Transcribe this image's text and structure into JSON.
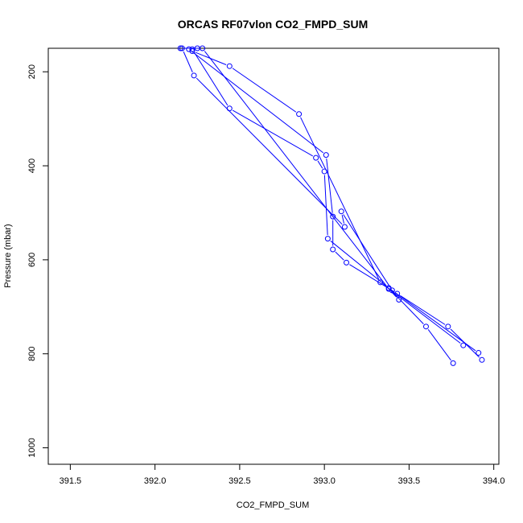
{
  "chart_data": {
    "type": "line",
    "title": "ORCAS RF07vlon CO2_FMPD_SUM",
    "xlabel": "CO2_FMPD_SUM",
    "ylabel": "Pressure (mbar)",
    "xlim": [
      391.37,
      394.03
    ],
    "ylim": [
      1035,
      150
    ],
    "y_inverted": true,
    "xticks": [
      391.5,
      392.0,
      392.5,
      393.0,
      393.5,
      394.0
    ],
    "xtick_labels": [
      "391.5",
      "392.0",
      "392.5",
      "393.0",
      "393.5",
      "394.0"
    ],
    "yticks": [
      200,
      400,
      600,
      800,
      1000
    ],
    "ytick_labels": [
      "200",
      "400",
      "600",
      "800",
      "1000"
    ],
    "grid": false,
    "legend": "none",
    "color": "#0000ff",
    "series": [
      {
        "x": [
          393.76,
          393.6,
          393.38,
          393.02,
          393.0,
          392.95,
          392.44,
          392.22
        ],
        "y": [
          820,
          742,
          660,
          555,
          412,
          383,
          278,
          152
        ]
      },
      {
        "x": [
          392.16,
          392.23,
          393.12,
          393.1,
          393.4,
          393.91
        ],
        "y": [
          150,
          208,
          530,
          497,
          665,
          798
        ]
      },
      {
        "x": [
          393.93,
          393.73,
          393.43,
          393.13,
          393.05,
          393.05,
          393.01,
          392.2,
          392.25
        ],
        "y": [
          813,
          742,
          672,
          606,
          578,
          508,
          377,
          152,
          150
        ]
      },
      {
        "x": [
          392.22,
          392.44,
          392.85,
          393.33,
          393.82
        ],
        "y": [
          156,
          188,
          290,
          648,
          782
        ]
      },
      {
        "x": [
          392.15,
          392.28,
          393.38,
          393.44
        ],
        "y": [
          150,
          150,
          662,
          685
        ]
      }
    ]
  }
}
